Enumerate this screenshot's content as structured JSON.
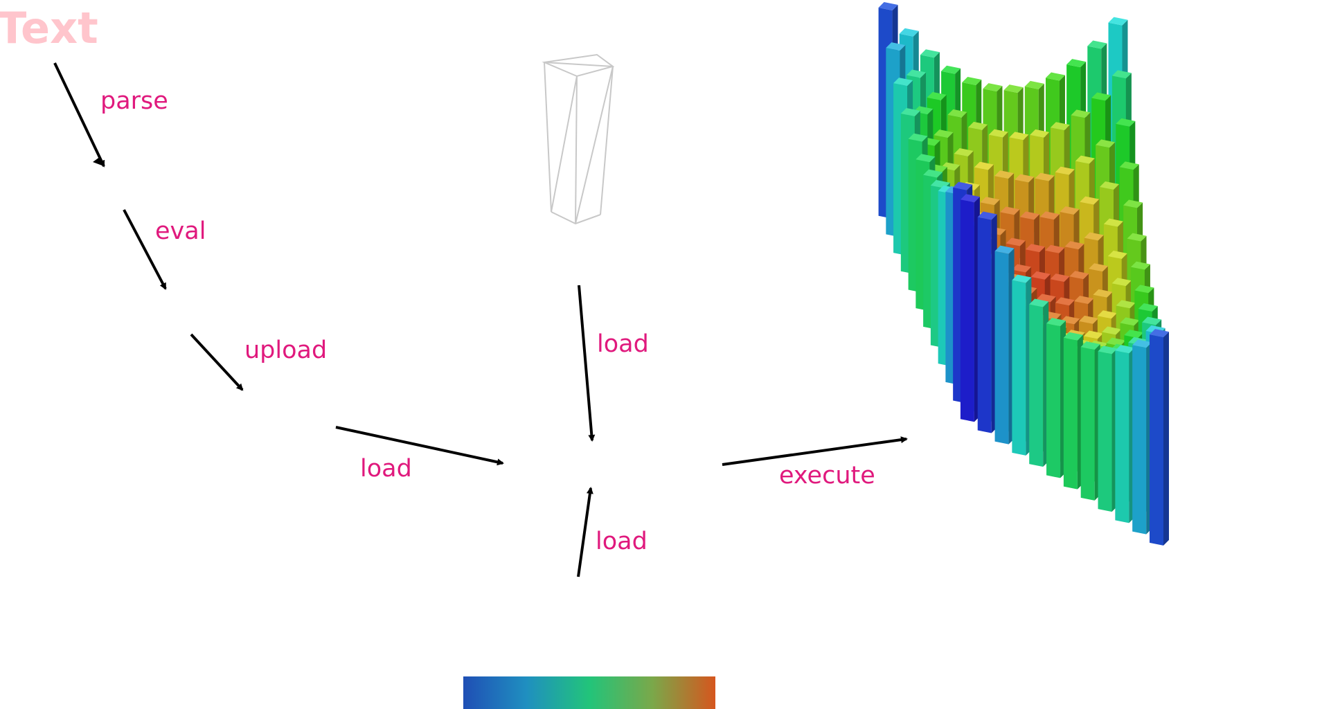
{
  "title": "Text",
  "steps": {
    "parse": "parse",
    "eval": "eval",
    "upload": "upload",
    "load_left": "load",
    "load_top": "load",
    "load_bottom": "load",
    "execute": "execute"
  },
  "colors": {
    "label": "#e0197d",
    "title": "#ffc5cc",
    "arrow": "#000000",
    "wireframe": "#c8c8c8",
    "gradient": [
      "#1f4fb5",
      "#1f8fc0",
      "#22c47a",
      "#7aa84a",
      "#d6561e"
    ]
  },
  "icons": {
    "mesh": "wireframe-box-icon",
    "colormap": "color-gradient-icon",
    "result": "3d-bar-chart-icon"
  }
}
